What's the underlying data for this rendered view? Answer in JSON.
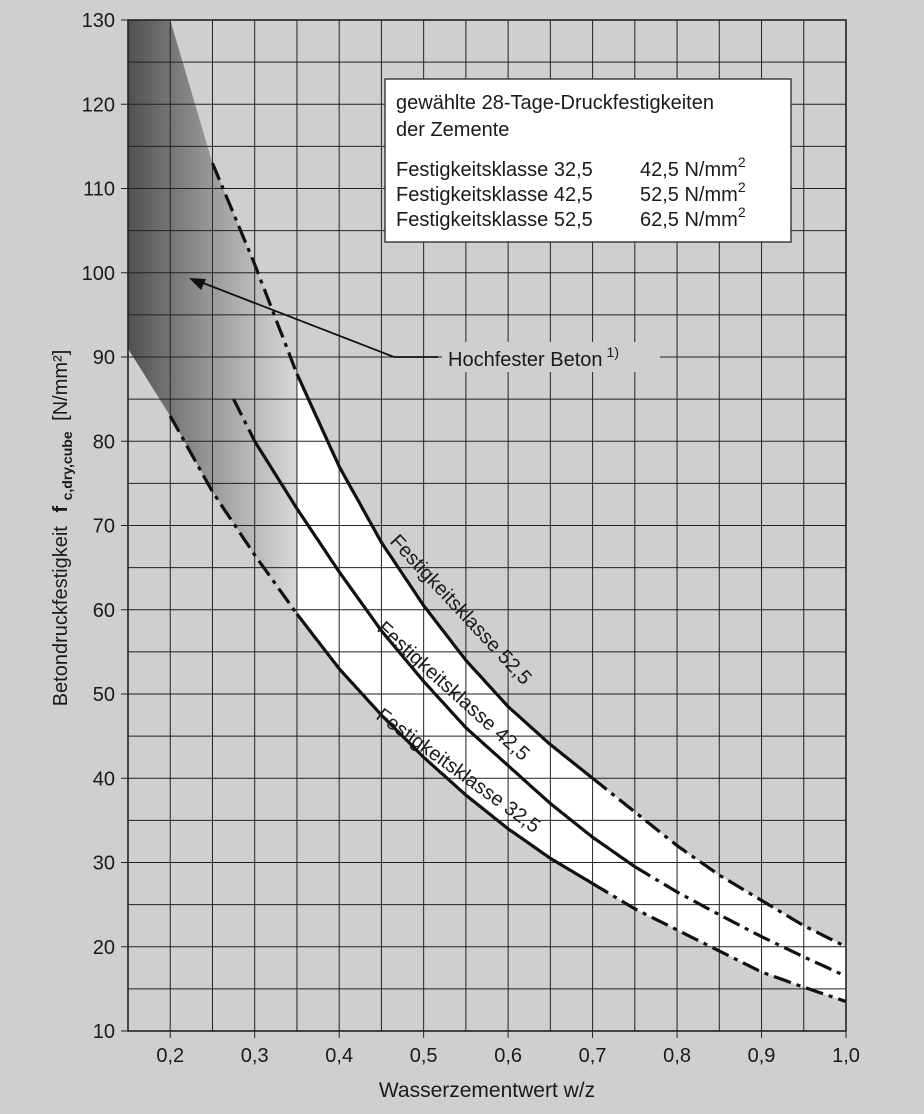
{
  "chart_data": {
    "type": "line",
    "xlabel": "Wasserzementwert w/z",
    "ylabel": {
      "main": "Betondruckfestigkeit",
      "symbol": "f",
      "subscript": "c,dry,cube",
      "unit": "[N/mm²]"
    },
    "xlim": [
      0.15,
      1.0
    ],
    "ylim": [
      10,
      130
    ],
    "x_ticks": [
      0.2,
      0.3,
      0.4,
      0.5,
      0.6,
      0.7,
      0.8,
      0.9,
      1.0
    ],
    "x_tick_labels": [
      "0,2",
      "0,3",
      "0,4",
      "0,5",
      "0,6",
      "0,7",
      "0,8",
      "0,9",
      "1,0"
    ],
    "y_ticks": [
      10,
      20,
      30,
      40,
      50,
      60,
      70,
      80,
      90,
      100,
      110,
      120,
      130
    ],
    "y_tick_labels": [
      "10",
      "20",
      "30",
      "40",
      "50",
      "60",
      "70",
      "80",
      "90",
      "100",
      "110",
      "120",
      "130"
    ],
    "grid": true,
    "legend_box": {
      "title_line1": "gewählte 28-Tage-Druckfestigkeiten",
      "title_line2": "der Zemente",
      "rows": [
        {
          "klasse": "Festigkeitsklasse 32,5",
          "wert": "42,5 N/mm",
          "exp": "2"
        },
        {
          "klasse": "Festigkeitsklasse 42,5",
          "wert": "52,5 N/mm",
          "exp": "2"
        },
        {
          "klasse": "Festigkeitsklasse 52,5",
          "wert": "62,5 N/mm",
          "exp": "2"
        }
      ]
    },
    "series": [
      {
        "name": "Festigkeitsklasse 32,5",
        "label": "Festigkeitsklasse 32,5",
        "solid_range": [
          0.35,
          0.7
        ],
        "x": [
          0.2,
          0.25,
          0.3,
          0.35,
          0.4,
          0.45,
          0.5,
          0.55,
          0.6,
          0.65,
          0.7,
          0.75,
          0.8,
          0.85,
          0.9,
          0.95,
          1.0
        ],
        "y": [
          83.0,
          74.0,
          66.5,
          59.5,
          53.0,
          47.5,
          42.5,
          38.0,
          34.0,
          30.5,
          27.5,
          24.5,
          22.0,
          19.5,
          17.0,
          15.2,
          13.5
        ]
      },
      {
        "name": "Festigkeitsklasse 42,5",
        "label": "Festigkeitsklasse 42,5",
        "solid_range": [
          0.3,
          0.75
        ],
        "x": [
          0.275,
          0.3,
          0.35,
          0.4,
          0.45,
          0.5,
          0.55,
          0.6,
          0.65,
          0.7,
          0.75,
          0.8,
          0.85,
          0.9,
          0.95,
          1.0
        ],
        "y": [
          85.0,
          80.0,
          72.0,
          64.5,
          57.5,
          51.5,
          46.0,
          41.5,
          37.0,
          33.0,
          29.5,
          26.5,
          23.8,
          21.2,
          18.8,
          16.5
        ]
      },
      {
        "name": "Festigkeitsklasse 52,5",
        "label": "Festigkeitsklasse 52,5",
        "solid_range": [
          0.35,
          0.7
        ],
        "x": [
          0.25,
          0.3,
          0.35,
          0.4,
          0.45,
          0.5,
          0.55,
          0.6,
          0.65,
          0.7,
          0.75,
          0.8,
          0.85,
          0.9,
          0.95,
          1.0
        ],
        "y": [
          113.0,
          101.0,
          88.0,
          77.0,
          68.0,
          60.5,
          54.0,
          48.5,
          44.0,
          40.0,
          36.0,
          32.0,
          28.5,
          25.5,
          22.5,
          20.0
        ]
      }
    ],
    "highlight_region": {
      "label": "Hochfester Beton",
      "footnote": "1)",
      "x_end": 0.35
    }
  }
}
